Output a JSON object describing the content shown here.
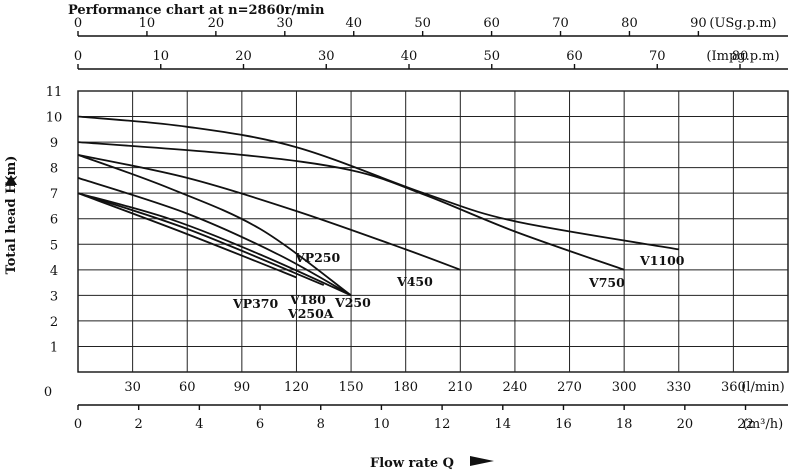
{
  "chart_data": {
    "type": "line",
    "title": "Performance chart at n=2860r/min",
    "ylabel": "Total head H(m)",
    "xlabel": "Flow rate Q",
    "ylim": [
      0,
      11
    ],
    "xlim_lmin": [
      0,
      390
    ],
    "grid": true,
    "y_ticks": [
      "1",
      "2",
      "3",
      "4",
      "5",
      "6",
      "7",
      "8",
      "9",
      "10",
      "11"
    ],
    "top_axes": [
      {
        "unit": "(USg.p.m)",
        "ticks": [
          0,
          10,
          20,
          30,
          40,
          50,
          60,
          70,
          80,
          90
        ],
        "max": 103,
        "labels": [
          "0",
          "10",
          "20",
          "30",
          "40",
          "50",
          "60",
          "70",
          "80",
          "90"
        ]
      },
      {
        "unit": "(Impg.p.m)",
        "ticks": [
          0,
          10,
          20,
          30,
          40,
          50,
          60,
          70,
          80
        ],
        "max": 85.8,
        "labels": [
          "0",
          "10",
          "20",
          "30",
          "40",
          "50",
          "60",
          "70",
          "80"
        ]
      }
    ],
    "bottom_axes": [
      {
        "unit": "(l/min)",
        "origin": "0",
        "ticks": [
          30,
          60,
          90,
          120,
          150,
          180,
          210,
          240,
          270,
          300,
          330,
          360
        ],
        "labels": [
          "30",
          "60",
          "90",
          "120",
          "150",
          "180",
          "210",
          "240",
          "270",
          "300",
          "330",
          "360"
        ]
      },
      {
        "unit": "(m³/h)",
        "ticks": [
          0,
          2,
          4,
          6,
          8,
          10,
          12,
          14,
          16,
          18,
          20,
          22
        ],
        "labels": [
          "0",
          "2",
          "4",
          "6",
          "8",
          "10",
          "12",
          "14",
          "16",
          "18",
          "20",
          "22"
        ]
      }
    ],
    "series": [
      {
        "name": "V1100",
        "points": [
          [
            0,
            10.0
          ],
          [
            60,
            9.6
          ],
          [
            120,
            8.8
          ],
          [
            190,
            7.0
          ],
          [
            240,
            5.9
          ],
          [
            330,
            4.8
          ]
        ]
      },
      {
        "name": "V750",
        "points": [
          [
            0,
            9.0
          ],
          [
            90,
            8.5
          ],
          [
            150,
            7.9
          ],
          [
            190,
            6.95
          ],
          [
            240,
            5.5
          ],
          [
            300,
            4.0
          ]
        ]
      },
      {
        "name": "V450",
        "points": [
          [
            0,
            8.5
          ],
          [
            60,
            7.6
          ],
          [
            120,
            6.3
          ],
          [
            180,
            4.8
          ],
          [
            210,
            4.0
          ]
        ]
      },
      {
        "name": "VP250",
        "points": [
          [
            0,
            8.5
          ],
          [
            50,
            7.2
          ],
          [
            100,
            5.6
          ],
          [
            150,
            3.0
          ]
        ]
      },
      {
        "name": "V250",
        "points": [
          [
            0,
            7.6
          ],
          [
            60,
            6.2
          ],
          [
            110,
            4.6
          ],
          [
            150,
            3.0
          ]
        ]
      },
      {
        "name": "V250A",
        "points": [
          [
            0,
            7.0
          ],
          [
            50,
            6.0
          ],
          [
            100,
            4.6
          ],
          [
            150,
            3.0
          ]
        ]
      },
      {
        "name": "V180",
        "points": [
          [
            0,
            7.0
          ],
          [
            60,
            5.6
          ],
          [
            135,
            3.4
          ]
        ]
      },
      {
        "name": "VP370",
        "points": [
          [
            0,
            7.0
          ],
          [
            60,
            5.4
          ],
          [
            120,
            3.7
          ]
        ]
      }
    ]
  }
}
